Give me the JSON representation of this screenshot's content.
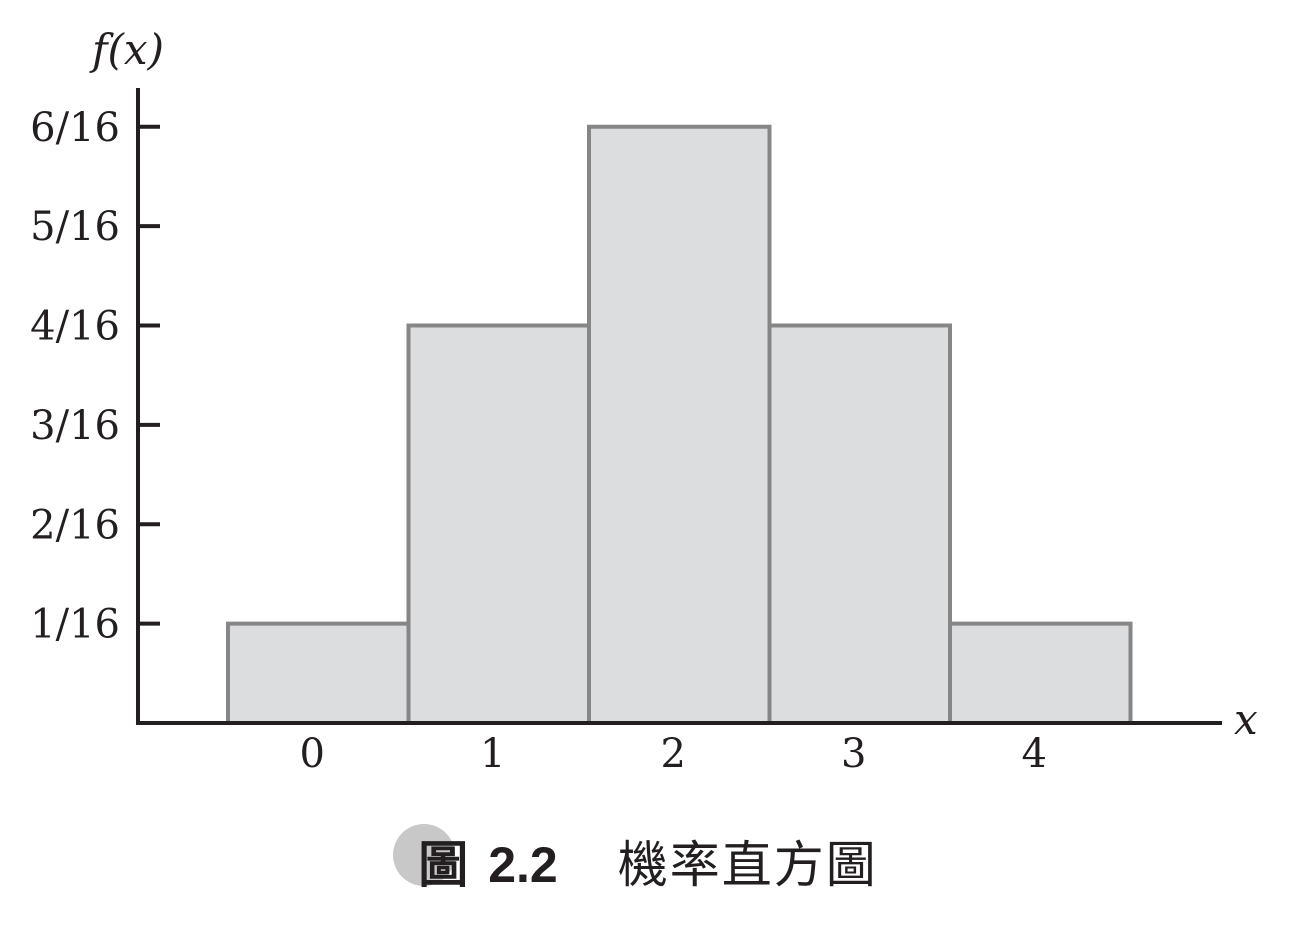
{
  "chart_data": {
    "type": "bar",
    "categories": [
      "0",
      "1",
      "2",
      "3",
      "4"
    ],
    "values": [
      0.0625,
      0.25,
      0.375,
      0.25,
      0.0625
    ],
    "ylabel": "f(x)",
    "xlabel": "x",
    "ylim": [
      0,
      0.375
    ],
    "yticks": [
      0.0625,
      0.125,
      0.1875,
      0.25,
      0.3125,
      0.375
    ],
    "ytick_labels": [
      "1/16",
      "2/16",
      "3/16",
      "4/16",
      "5/16",
      "6/16"
    ],
    "grid": false
  },
  "caption": {
    "figure_word": "圖",
    "figure_number": "2.2",
    "title": "機率直方圖"
  },
  "colors": {
    "bar_fill": "#dcdddf",
    "bar_stroke": "#868686",
    "axis": "#231f20",
    "caption_circle": "#c8c8c9"
  }
}
